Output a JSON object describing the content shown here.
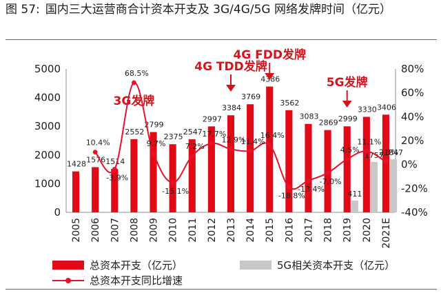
{
  "figure": {
    "number": "图 57:",
    "title": "国内三大运营商合计资本开支及 3G/4G/5G 网络发牌时间（亿元）"
  },
  "chart_data": {
    "type": "bar",
    "categories": [
      "2005",
      "2006",
      "2007",
      "2008",
      "2009",
      "2010",
      "2011",
      "2012",
      "2013",
      "2014",
      "2015",
      "2016",
      "2017",
      "2018",
      "2019",
      "2020",
      "2021E"
    ],
    "series": [
      {
        "name": "总资本开支（亿元）",
        "kind": "bar",
        "axis": "left",
        "color": "#e20a16",
        "values": [
          1428,
          1576,
          1514,
          2552,
          2799,
          2375,
          2547,
          2997,
          3384,
          3769,
          4386,
          3562,
          3083,
          2869,
          2999,
          3330,
          3406
        ]
      },
      {
        "name": "5G相关资本开支（亿元）",
        "kind": "bar",
        "axis": "left",
        "color": "#c8c8c8",
        "values": [
          null,
          null,
          null,
          null,
          null,
          null,
          null,
          null,
          null,
          null,
          null,
          null,
          null,
          null,
          411,
          1757,
          1847
        ]
      },
      {
        "name": "总资本开支同比增速",
        "kind": "line",
        "axis": "right",
        "color": "#e8102a",
        "values": [
          null,
          10.4,
          -3.9,
          68.5,
          9.7,
          -15.1,
          7.2,
          17.7,
          12.9,
          11.4,
          16.4,
          -18.8,
          -13.4,
          -7.0,
          4.5,
          11.1,
          2.3
        ],
        "labels": [
          "",
          "10.4%",
          "-3.9%",
          "68.5%",
          "9.7%",
          "-15.1%",
          "7.2%",
          "17.7%",
          "12.9%",
          "11.4%",
          "16.4%",
          "-18.8%",
          "-13.4%",
          "-7.0%",
          "4.5%",
          "11.1%",
          "2.3%"
        ]
      }
    ],
    "y_left": {
      "lim": [
        0,
        5000
      ],
      "ticks": [
        "0",
        "1000",
        "2000",
        "3000",
        "4000",
        "5000"
      ]
    },
    "y_right": {
      "lim": [
        -40,
        80
      ],
      "ticks": [
        "80%",
        "60%",
        "40%",
        "20%",
        "0%",
        "-20%",
        "-40%"
      ]
    },
    "annotations": [
      {
        "text": "3G发牌",
        "category": "2008"
      },
      {
        "text": "4G TDD发牌",
        "category": "2013"
      },
      {
        "text": "4G FDD发牌",
        "category": "2015"
      },
      {
        "text": "5G发牌",
        "category": "2019"
      }
    ],
    "legend": {
      "bar_total": "总资本开支（亿元）",
      "bar_5g": "5G相关资本开支（亿元）",
      "line_growth": "总资本开支同比增速"
    },
    "grid": false
  }
}
